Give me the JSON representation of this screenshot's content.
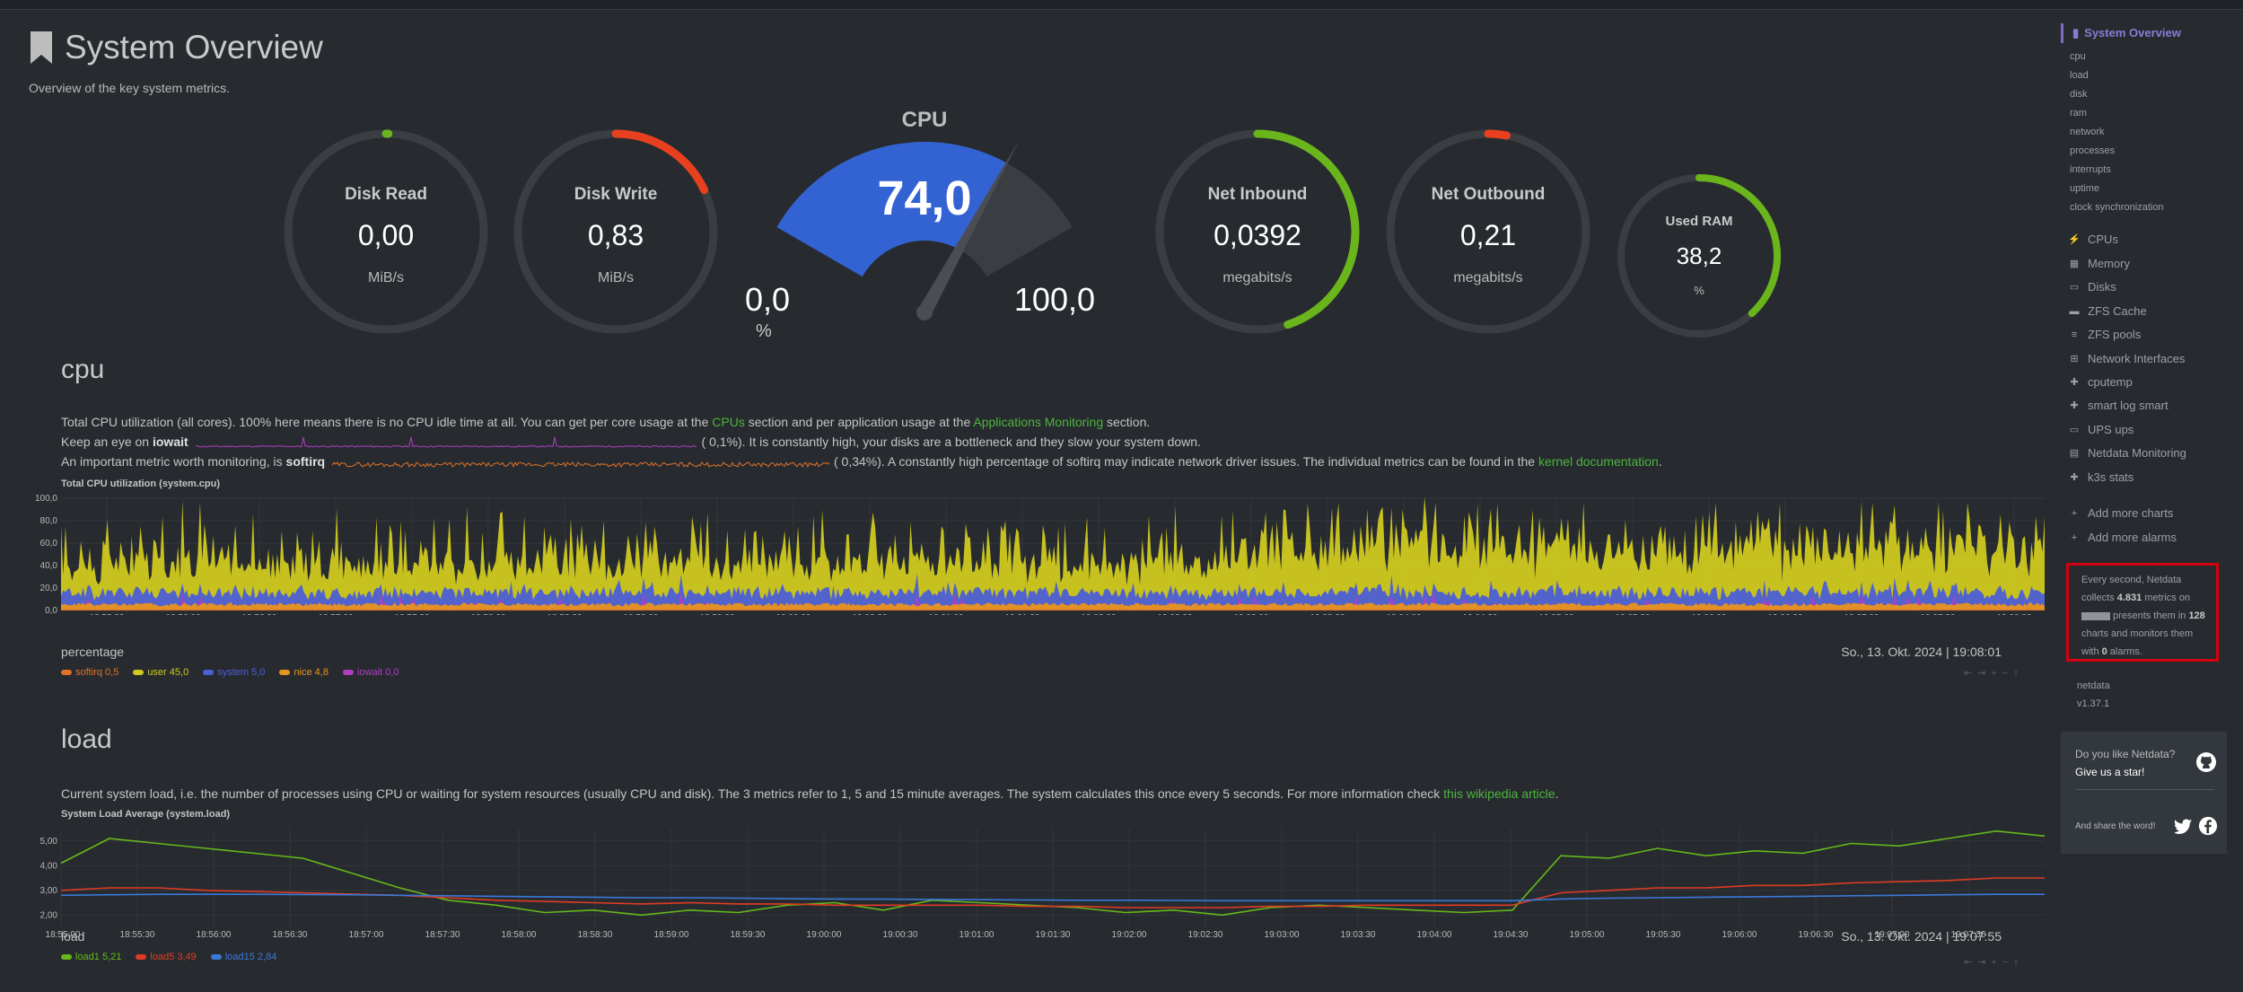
{
  "page": {
    "title": "System Overview",
    "subtitle": "Overview of the key system metrics."
  },
  "gauges": {
    "disk_read": {
      "title": "Disk Read",
      "value": "0,00",
      "unit": "MiB/s",
      "fraction": 0.0
    },
    "disk_write": {
      "title": "Disk Write",
      "value": "0,83",
      "unit": "MiB/s",
      "fraction": 0.18
    },
    "cpu": {
      "title": "CPU",
      "value": "74,0",
      "min": "0,0",
      "max": "100,0",
      "unit": "%",
      "fraction": 0.74
    },
    "net_inbound": {
      "title": "Net Inbound",
      "value": "0,0392",
      "unit": "megabits/s",
      "fraction": 0.45
    },
    "net_outbound": {
      "title": "Net Outbound",
      "value": "0,21",
      "unit": "megabits/s",
      "fraction": 0.03
    },
    "used_ram": {
      "title": "Used RAM",
      "value": "38,2",
      "unit": "%",
      "fraction": 0.382
    }
  },
  "cpu_section": {
    "heading": "cpu",
    "desc1_a": "Total CPU utilization (all cores). 100% here means there is no CPU idle time at all. You can get per core usage at the ",
    "desc1_link1": "CPUs",
    "desc1_b": " section and per application usage at the ",
    "desc1_link2": "Applications Monitoring",
    "desc1_c": " section.",
    "desc2_a": "Keep an eye on ",
    "desc2_bold": "iowait",
    "desc2_b": "0,1%). It is constantly high, your disks are a bottleneck and they slow your system down.",
    "desc3_a": "An important metric worth monitoring, is ",
    "desc3_bold": "softirq",
    "desc3_b": "0,34%). A constantly high percentage of softirq may indicate network driver issues. The individual metrics can be found in the ",
    "desc3_link": "kernel documentation",
    "desc3_c": ".",
    "chart_title": "Total CPU utilization (system.cpu)",
    "units": "percentage",
    "timestamp": "So., 13. Okt. 2024 | 19:08:01"
  },
  "load_section": {
    "heading": "load",
    "desc_a": "Current system load, i.e. the number of processes using CPU or waiting for system resources (usually CPU and disk). The 3 metrics refer to 1, 5 and 15 minute averages. The system calculates this once every 5 seconds. For more information check ",
    "desc_link": "this wikipedia article",
    "desc_b": ".",
    "chart_title": "System Load Average (system.load)",
    "units": "load",
    "timestamp": "So., 13. Okt. 2024 | 19:07:55"
  },
  "chart_data": [
    {
      "type": "area",
      "title": "Total CPU utilization (system.cpu)",
      "ylabel": "percentage",
      "ylim": [
        0,
        100
      ],
      "yticks": [
        "100,0",
        "80,0",
        "60,0",
        "40,0",
        "20,0",
        "0,0"
      ],
      "xticks": [
        "18:55:30",
        "18:56:00",
        "18:56:30",
        "18:57:00",
        "18:57:30",
        "18:58:00",
        "18:58:30",
        "18:59:00",
        "18:59:30",
        "19:00:00",
        "19:00:30",
        "19:01:00",
        "19:01:30",
        "19:02:00",
        "19:02:30",
        "19:03:00",
        "19:03:30",
        "19:04:00",
        "19:04:30",
        "19:05:00",
        "19:05:30",
        "19:06:00",
        "19:06:30",
        "19:07:00",
        "19:07:30",
        "19:08:00"
      ],
      "series": [
        {
          "name": "softirq",
          "legend_value": "0,5",
          "color": "#e0722a"
        },
        {
          "name": "user",
          "legend_value": "45,0",
          "color": "#cfc91f"
        },
        {
          "name": "system",
          "legend_value": "5,0",
          "color": "#4c5fd6"
        },
        {
          "name": "nice",
          "legend_value": "4,8",
          "color": "#e5961e"
        },
        {
          "name": "iowait",
          "legend_value": "0,0",
          "color": "#b13cc4"
        }
      ]
    },
    {
      "type": "line",
      "title": "System Load Average (system.load)",
      "ylabel": "load",
      "ylim": [
        1.5,
        5.5
      ],
      "yticks": [
        "5,00",
        "4,00",
        "3,00",
        "2,00"
      ],
      "xticks": [
        "18:55:00",
        "18:55:30",
        "18:56:00",
        "18:56:30",
        "18:57:00",
        "18:57:30",
        "18:58:00",
        "18:58:30",
        "18:59:00",
        "18:59:30",
        "19:00:00",
        "19:00:30",
        "19:01:00",
        "19:01:30",
        "19:02:00",
        "19:02:30",
        "19:03:00",
        "19:03:30",
        "19:04:00",
        "19:04:30",
        "19:05:00",
        "19:05:30",
        "19:06:00",
        "19:06:30",
        "19:07:00",
        "19:07:30"
      ],
      "series": [
        {
          "name": "load1",
          "legend_value": "5,21",
          "color": "#66b81a",
          "values": [
            4.1,
            5.1,
            4.9,
            4.7,
            4.5,
            4.3,
            3.7,
            3.1,
            2.6,
            2.4,
            2.1,
            2.2,
            2.0,
            2.2,
            2.1,
            2.4,
            2.5,
            2.2,
            2.6,
            2.5,
            2.4,
            2.3,
            2.1,
            2.2,
            2.0,
            2.3,
            2.4,
            2.3,
            2.2,
            2.1,
            2.2,
            4.4,
            4.3,
            4.7,
            4.4,
            4.6,
            4.5,
            4.9,
            4.8,
            5.1,
            5.4,
            5.2
          ]
        },
        {
          "name": "load5",
          "legend_value": "3,49",
          "color": "#e13b23",
          "values": [
            3.0,
            3.1,
            3.1,
            3.0,
            2.95,
            2.9,
            2.85,
            2.8,
            2.7,
            2.6,
            2.55,
            2.5,
            2.45,
            2.5,
            2.45,
            2.45,
            2.4,
            2.4,
            2.4,
            2.4,
            2.35,
            2.35,
            2.3,
            2.3,
            2.3,
            2.35,
            2.35,
            2.4,
            2.4,
            2.4,
            2.4,
            2.9,
            3.0,
            3.1,
            3.1,
            3.2,
            3.2,
            3.3,
            3.35,
            3.4,
            3.5,
            3.5
          ]
        },
        {
          "name": "load15",
          "legend_value": "2,84",
          "color": "#3a78d8",
          "values": [
            2.8,
            2.82,
            2.84,
            2.84,
            2.84,
            2.83,
            2.82,
            2.8,
            2.78,
            2.76,
            2.74,
            2.72,
            2.7,
            2.7,
            2.68,
            2.66,
            2.65,
            2.64,
            2.63,
            2.62,
            2.61,
            2.6,
            2.6,
            2.59,
            2.58,
            2.58,
            2.58,
            2.58,
            2.58,
            2.58,
            2.58,
            2.65,
            2.68,
            2.7,
            2.72,
            2.74,
            2.76,
            2.78,
            2.8,
            2.82,
            2.84,
            2.84
          ]
        }
      ]
    }
  ],
  "sidebar": {
    "active": "System Overview",
    "subitems": [
      "cpu",
      "load",
      "disk",
      "ram",
      "network",
      "processes",
      "interrupts",
      "uptime",
      "clock synchronization"
    ],
    "menu": [
      {
        "label": "CPUs",
        "icon": "bolt-icon",
        "glyph": "⚡"
      },
      {
        "label": "Memory",
        "icon": "memory-icon",
        "glyph": "▦"
      },
      {
        "label": "Disks",
        "icon": "hdd-icon",
        "glyph": "▭"
      },
      {
        "label": "ZFS Cache",
        "icon": "folder-icon",
        "glyph": "▬"
      },
      {
        "label": "ZFS pools",
        "icon": "database-icon",
        "glyph": "≡"
      },
      {
        "label": "Network Interfaces",
        "icon": "network-icon",
        "glyph": "⊞"
      },
      {
        "label": "cputemp",
        "icon": "puzzle-icon",
        "glyph": "✚"
      },
      {
        "label": "smart log smart",
        "icon": "puzzle-icon",
        "glyph": "✚"
      },
      {
        "label": "UPS ups",
        "icon": "battery-icon",
        "glyph": "▭"
      },
      {
        "label": "Netdata Monitoring",
        "icon": "chart-icon",
        "glyph": "▤"
      },
      {
        "label": "k3s stats",
        "icon": "puzzle-icon",
        "glyph": "✚"
      }
    ],
    "add_charts": "Add more charts",
    "add_alarms": "Add more alarms",
    "info": {
      "l1": "Every second, Netdata",
      "l2a": "collects ",
      "l2b": "4.831",
      "l2c": " metrics on",
      "l3a": " presents them in ",
      "l3b": "128",
      "l4": "charts and monitors them",
      "l5a": "with ",
      "l5b": "0",
      "l5c": " alarms."
    },
    "product": "netdata",
    "version": "v1.37.1",
    "star_q": "Do you like Netdata?",
    "star_g": "Give us a star!",
    "share": "And share the word!"
  }
}
